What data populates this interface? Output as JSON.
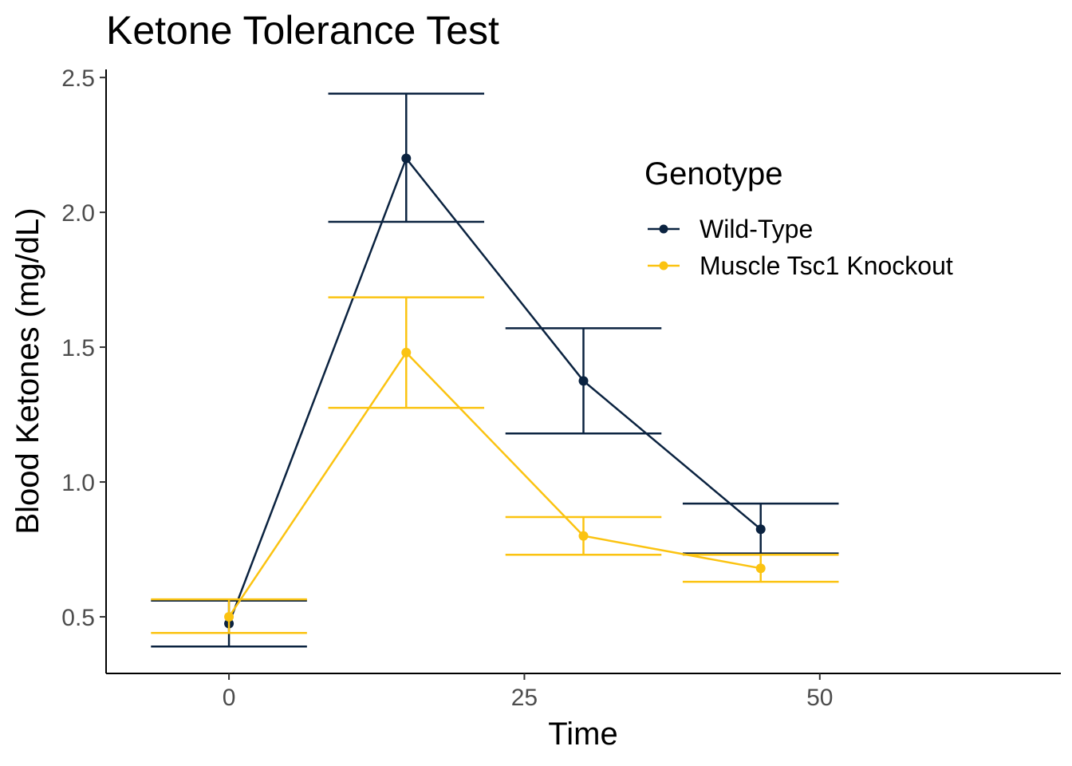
{
  "chart_data": {
    "type": "line",
    "title": "Ketone Tolerance Test",
    "xlabel": "Time",
    "ylabel": "Blood Ketones (mg/dL)",
    "xlim": [
      -10.4,
      70.4
    ],
    "ylim": [
      0.29,
      2.53
    ],
    "x_ticks": [
      0,
      25,
      50
    ],
    "y_ticks": [
      0.5,
      1.0,
      1.5,
      2.0,
      2.5
    ],
    "x_tick_labels": [
      "0",
      "25",
      "50"
    ],
    "y_tick_labels": [
      "0.5",
      "1.0",
      "1.5",
      "2.0",
      "2.5"
    ],
    "grid": false,
    "legend": {
      "title": "Genotype",
      "position": "top-right-inside"
    },
    "error_bar_half_width": 6.6,
    "x": [
      0,
      15,
      30,
      45
    ],
    "series": [
      {
        "name": "Wild-Type",
        "color": "#0b2340",
        "values": [
          0.475,
          2.2,
          1.375,
          0.825
        ],
        "lower": [
          0.39,
          1.965,
          1.18,
          0.735
        ],
        "upper": [
          0.56,
          2.44,
          1.57,
          0.92
        ]
      },
      {
        "name": "Muscle Tsc1 Knockout",
        "color": "#fbc311",
        "values": [
          0.5,
          1.48,
          0.8,
          0.68
        ],
        "lower": [
          0.44,
          1.275,
          0.73,
          0.63
        ],
        "upper": [
          0.565,
          1.685,
          0.87,
          0.73
        ]
      }
    ]
  }
}
